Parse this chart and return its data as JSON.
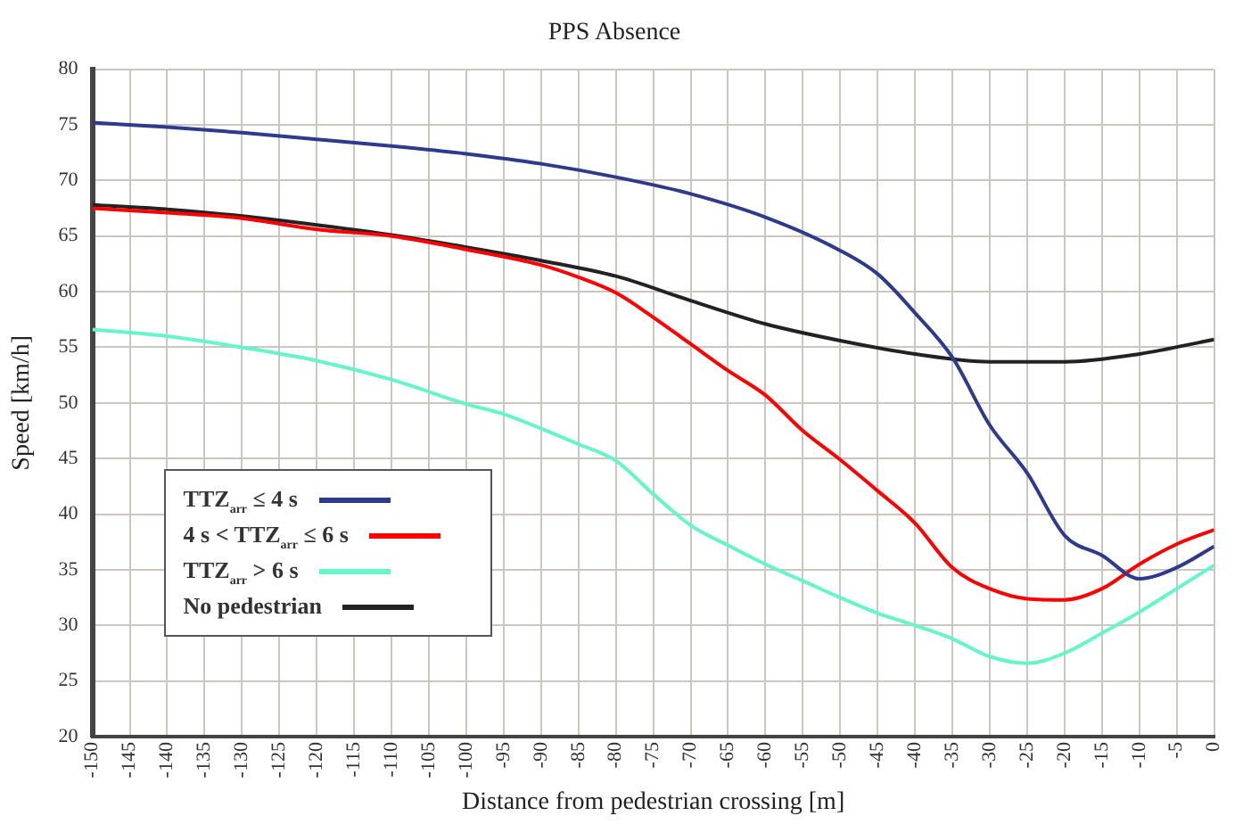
{
  "chart_data": {
    "type": "line",
    "title": "PPS Absence",
    "xlabel": "Distance from pedestrian crossing [m]",
    "ylabel": "Speed [km/h]",
    "xlim": [
      -150,
      0
    ],
    "xticks": [
      -150,
      -145,
      -140,
      -135,
      -130,
      -125,
      -120,
      -115,
      -110,
      -105,
      -100,
      -95,
      -90,
      -85,
      -80,
      -75,
      -70,
      -65,
      -60,
      -55,
      -50,
      -45,
      -40,
      -35,
      -30,
      -25,
      -20,
      -15,
      -10,
      -5,
      0
    ],
    "ylim": [
      20,
      80
    ],
    "yticks": [
      20,
      25,
      30,
      35,
      40,
      45,
      50,
      55,
      60,
      65,
      70,
      75,
      80
    ],
    "grid": true,
    "legend": "left",
    "marker": "none",
    "line_style": "solid",
    "series": [
      {
        "name": "TTZ$_{arr}$ ≤ 4 s",
        "color": "#2e3a8c",
        "x": [
          -150,
          -140,
          -130,
          -120,
          -110,
          -100,
          -90,
          -80,
          -70,
          -60,
          -50,
          -45,
          -40,
          -35,
          -30,
          -25,
          -20,
          -15,
          -10,
          -5,
          0
        ],
        "values": [
          75.2,
          74.8,
          74.3,
          73.7,
          73.1,
          72.4,
          71.5,
          70.3,
          68.8,
          66.7,
          63.7,
          61.6,
          58.1,
          54.1,
          48,
          43.7,
          38.1,
          36.3,
          34.2,
          35.2,
          37.1
        ]
      },
      {
        "name": "4 s < TTZ$_{arr}$ ≤ 6 s",
        "color": "#ff0000",
        "x": [
          -150,
          -140,
          -130,
          -120,
          -110,
          -100,
          -90,
          -85,
          -80,
          -75,
          -70,
          -65,
          -60,
          -55,
          -50,
          -45,
          -40,
          -35,
          -30,
          -25,
          -20,
          -15,
          -10,
          -5,
          0
        ],
        "values": [
          67.5,
          67.1,
          66.6,
          65.6,
          65,
          63.8,
          62.4,
          61.3,
          59.9,
          57.7,
          55.3,
          52.9,
          50.7,
          47.5,
          44.9,
          42.1,
          39.2,
          35.2,
          33.3,
          32.4,
          32.3,
          33.3,
          35.5,
          37.3,
          38.6
        ]
      },
      {
        "name": "TTZ$_{arr}$ > 6 s",
        "color": "#66f5c8",
        "x": [
          -150,
          -140,
          -130,
          -120,
          -110,
          -100,
          -95,
          -90,
          -85,
          -80,
          -75,
          -70,
          -65,
          -60,
          -55,
          -50,
          -45,
          -40,
          -35,
          -30,
          -25,
          -20,
          -15,
          -10,
          -5,
          0
        ],
        "values": [
          56.6,
          56,
          55,
          53.8,
          52.1,
          49.9,
          49,
          47.7,
          46.3,
          44.8,
          41.8,
          39,
          37.2,
          35.5,
          34,
          32.5,
          31.1,
          30,
          28.8,
          27.2,
          26.6,
          27.5,
          29.3,
          31.2,
          33.3,
          35.4
        ]
      },
      {
        "name": "No pedestrian",
        "color": "#222222",
        "x": [
          -150,
          -140,
          -130,
          -120,
          -110,
          -100,
          -90,
          -80,
          -70,
          -60,
          -50,
          -40,
          -30,
          -20,
          -10,
          0
        ],
        "values": [
          67.8,
          67.4,
          66.8,
          66,
          65.1,
          64,
          62.8,
          61.4,
          59.2,
          57.1,
          55.6,
          54.4,
          53.7,
          53.7,
          54.4,
          55.7
        ]
      }
    ]
  }
}
